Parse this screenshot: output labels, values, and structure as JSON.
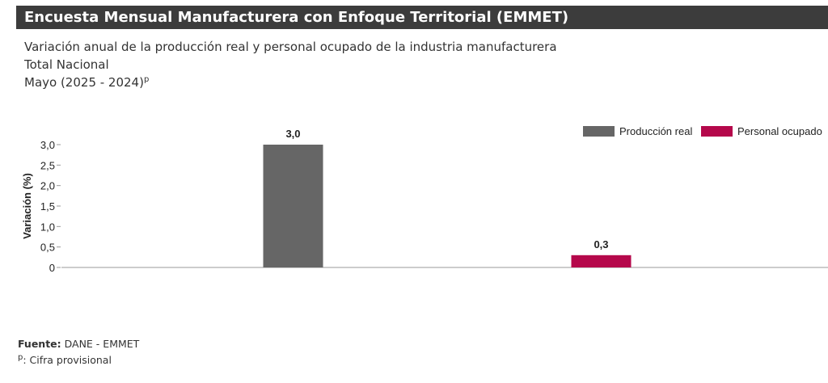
{
  "header": {
    "title": "Encuesta Mensual Manufacturera con Enfoque Territorial (EMMET)"
  },
  "subtitle": {
    "line1": "Variación anual de la producción real y personal ocupado de la industria manufacturera",
    "line2": "Total Nacional",
    "line3": "Mayo (2025 - 2024)",
    "line3_sup": "p"
  },
  "chart_data": {
    "type": "bar",
    "categories": [
      "Producción real",
      "Personal ocupado"
    ],
    "series": [
      {
        "name": "Producción real",
        "values": [
          3.0,
          null
        ],
        "color": "#666666"
      },
      {
        "name": "Personal ocupado",
        "values": [
          null,
          0.3
        ],
        "color": "#b5084b"
      }
    ],
    "data_labels": [
      "3,0",
      "0,3"
    ],
    "ylabel": "Variación (%)",
    "xlabel": "",
    "ylim": [
      0,
      3.0
    ],
    "yticks": [
      0,
      0.5,
      1.0,
      1.5,
      2.0,
      2.5,
      3.0
    ],
    "ytick_labels": [
      "0",
      "0,5",
      "1,0",
      "1,5",
      "2,0",
      "2,5",
      "3,0"
    ],
    "legend_position": "top-right",
    "grid": false
  },
  "footer": {
    "source_label": "Fuente:",
    "source_value": " DANE - EMMET",
    "note_sup": "p",
    "note_text": ": Cifra provisional"
  }
}
